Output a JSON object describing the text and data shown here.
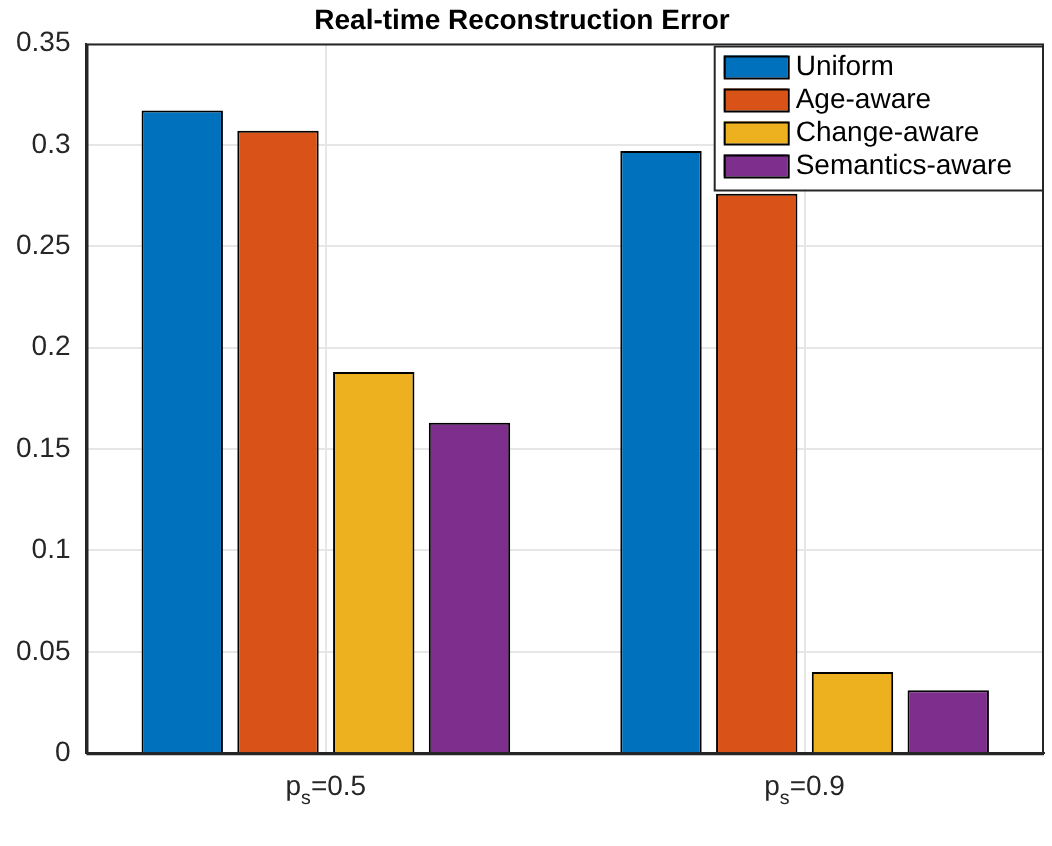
{
  "chart_data": {
    "type": "bar",
    "title": "Real-time Reconstruction Error",
    "categories": [
      "p$_{s}$=0.5",
      "p$_{s}$=0.9"
    ],
    "series": [
      {
        "name": "Uniform",
        "color": "#0072bd",
        "values": [
          0.317,
          0.297
        ]
      },
      {
        "name": "Age-aware",
        "color": "#d95319",
        "values": [
          0.307,
          0.276
        ]
      },
      {
        "name": "Change-aware",
        "color": "#edb120",
        "values": [
          0.188,
          0.04
        ]
      },
      {
        "name": "Semantics-aware",
        "color": "#7e2f8e",
        "values": [
          0.163,
          0.031
        ]
      }
    ],
    "ylim": [
      0,
      0.35
    ],
    "yticks": [
      0,
      0.05,
      0.1,
      0.15,
      0.2,
      0.25,
      0.3,
      0.35
    ],
    "grid": true,
    "legend": "top right"
  }
}
